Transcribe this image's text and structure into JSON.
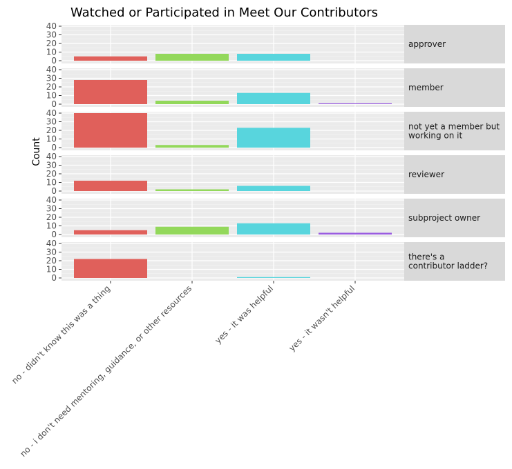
{
  "chart_data": {
    "type": "bar",
    "title": "Watched or Participated in Meet Our Contributors",
    "xlabel": "",
    "ylabel": "Count",
    "ylim": [
      0,
      40
    ],
    "yticks": [
      0,
      10,
      20,
      30,
      40
    ],
    "grid": true,
    "legend": "none",
    "categories": [
      "no - didn't know this was a thing",
      "no - i don't need mentoring, guidance, or other resources",
      "yes - it was helpful",
      "yes - it wasn't helpful"
    ],
    "colors": [
      "#e0605b",
      "#93d85b",
      "#58d5dd",
      "#9a5ce0"
    ],
    "panels": [
      {
        "label": [
          "approver"
        ],
        "values": [
          5,
          8,
          8,
          0
        ]
      },
      {
        "label": [
          "member"
        ],
        "values": [
          28,
          4,
          13,
          1
        ]
      },
      {
        "label": [
          "not yet a member but",
          "working on it"
        ],
        "values": [
          40,
          3,
          23,
          0
        ]
      },
      {
        "label": [
          "reviewer"
        ],
        "values": [
          12,
          2,
          6,
          0
        ]
      },
      {
        "label": [
          "subproject owner"
        ],
        "values": [
          5,
          9,
          13,
          2
        ]
      },
      {
        "label": [
          "there's a",
          "contributor ladder?"
        ],
        "values": [
          22,
          0,
          1,
          0
        ]
      }
    ]
  }
}
